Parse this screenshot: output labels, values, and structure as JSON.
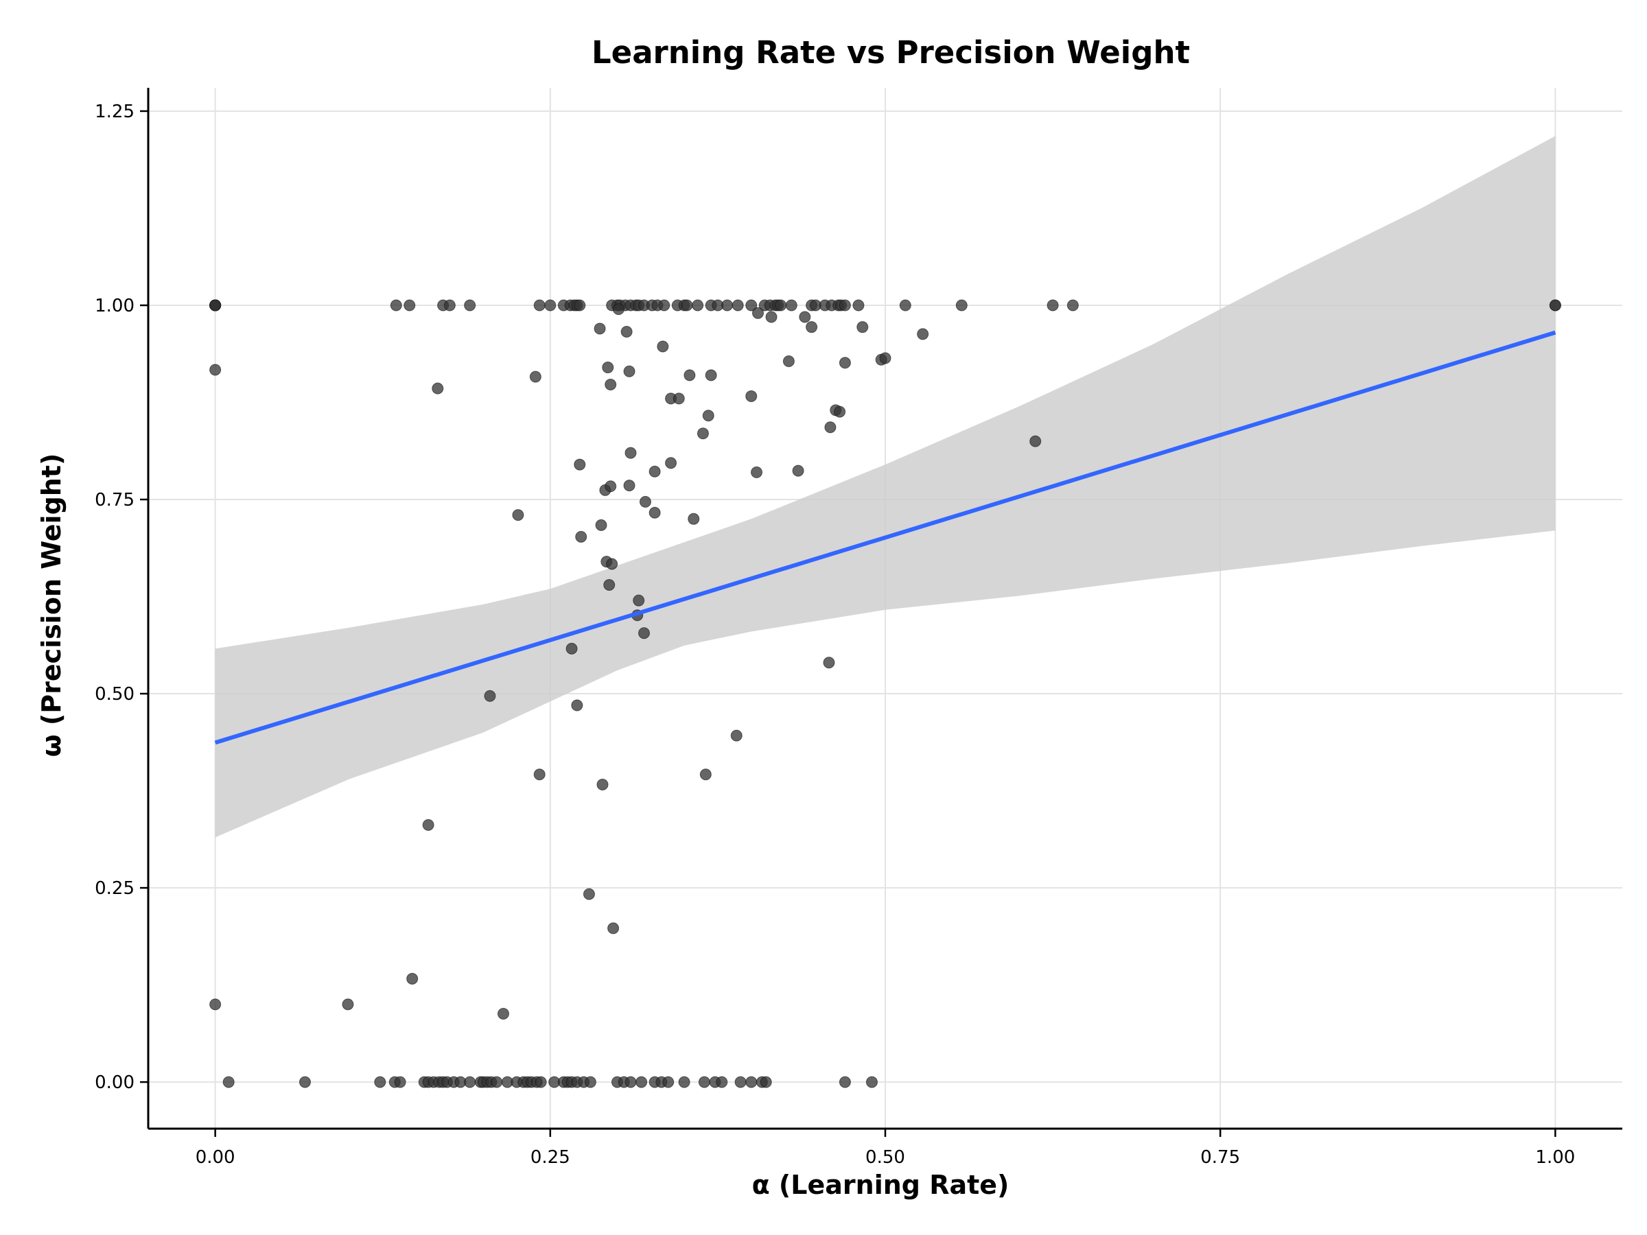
{
  "chart_data": {
    "type": "scatter",
    "title": "Learning Rate vs Precision Weight",
    "xlabel": "α (Learning Rate)",
    "ylabel": "ω (Precision Weight)",
    "xlim": [
      -0.05,
      1.05
    ],
    "ylim": [
      -0.06,
      1.28
    ],
    "x_ticks": [
      0.0,
      0.25,
      0.5,
      0.75,
      1.0
    ],
    "x_tick_labels": [
      "0.00",
      "0.25",
      "0.50",
      "0.75",
      "1.00"
    ],
    "y_ticks": [
      0.0,
      0.25,
      0.5,
      0.75,
      1.0,
      1.25
    ],
    "y_tick_labels": [
      "0.00",
      "0.25",
      "0.50",
      "0.75",
      "1.00",
      "1.25"
    ],
    "grid": true,
    "colors": {
      "points": "#333333",
      "trend_line": "#3366ff",
      "confidence_band": "#cccccc"
    },
    "trend_line": {
      "x": [
        0.0,
        1.0
      ],
      "y": [
        0.437,
        0.965
      ]
    },
    "confidence_band": {
      "x": [
        0.0,
        0.1,
        0.2,
        0.25,
        0.3,
        0.35,
        0.4,
        0.5,
        0.6,
        0.7,
        0.8,
        0.9,
        1.0
      ],
      "lower": [
        0.315,
        0.39,
        0.45,
        0.49,
        0.53,
        0.562,
        0.58,
        0.608,
        0.626,
        0.648,
        0.668,
        0.69,
        0.71
      ],
      "upper": [
        0.558,
        0.585,
        0.615,
        0.635,
        0.665,
        0.695,
        0.725,
        0.795,
        0.87,
        0.95,
        1.04,
        1.125,
        1.218
      ]
    },
    "points": {
      "x": [
        0.0,
        0.0,
        0.0,
        0.0,
        0.0,
        0.0,
        0.135,
        0.145,
        0.17,
        0.175,
        0.19,
        0.242,
        0.25,
        0.26,
        0.265,
        0.268,
        0.27,
        0.272,
        0.296,
        0.3,
        0.302,
        0.306,
        0.31,
        0.314,
        0.316,
        0.32,
        0.326,
        0.33,
        0.335,
        0.345,
        0.35,
        0.352,
        0.36,
        0.37,
        0.375,
        0.382,
        0.39,
        0.4,
        0.41,
        0.414,
        0.418,
        0.42,
        0.422,
        0.43,
        0.445,
        0.448,
        0.455,
        0.46,
        0.465,
        0.467,
        0.47,
        0.48,
        0.515,
        0.557,
        0.625,
        0.64,
        1.0,
        1.0,
        0.301,
        0.405,
        0.415,
        0.44,
        0.445,
        0.483,
        0.307,
        0.287,
        0.528,
        0.334,
        0.0,
        0.497,
        0.5,
        0.428,
        0.47,
        0.293,
        0.309,
        0.239,
        0.354,
        0.295,
        0.37,
        0.166,
        0.34,
        0.346,
        0.4,
        0.463,
        0.466,
        0.368,
        0.364,
        0.459,
        0.612,
        0.31,
        0.272,
        0.34,
        0.328,
        0.404,
        0.435,
        0.291,
        0.309,
        0.295,
        0.321,
        0.226,
        0.328,
        0.357,
        0.288,
        0.273,
        0.292,
        0.296,
        0.294,
        0.316,
        0.315,
        0.32,
        0.266,
        0.458,
        0.205,
        0.27,
        0.389,
        0.242,
        0.366,
        0.289,
        0.159,
        0.279,
        0.297,
        0.147,
        0.0,
        0.099,
        0.215,
        0.01,
        0.067,
        0.123,
        0.134,
        0.138,
        0.156,
        0.159,
        0.163,
        0.167,
        0.17,
        0.173,
        0.178,
        0.183,
        0.19,
        0.198,
        0.2,
        0.203,
        0.206,
        0.21,
        0.218,
        0.225,
        0.23,
        0.233,
        0.236,
        0.24,
        0.243,
        0.253,
        0.26,
        0.263,
        0.266,
        0.27,
        0.275,
        0.28,
        0.3,
        0.305,
        0.31,
        0.318,
        0.328,
        0.333,
        0.338,
        0.35,
        0.365,
        0.373,
        0.378,
        0.392,
        0.4,
        0.408,
        0.411,
        0.47,
        0.49
      ],
      "y": [
        1.0,
        1.0,
        1.0,
        1.0,
        1.0,
        1.0,
        1.0,
        1.0,
        1.0,
        1.0,
        1.0,
        1.0,
        1.0,
        1.0,
        1.0,
        1.0,
        1.0,
        1.0,
        1.0,
        1.0,
        1.0,
        1.0,
        1.0,
        1.0,
        1.0,
        1.0,
        1.0,
        1.0,
        1.0,
        1.0,
        1.0,
        1.0,
        1.0,
        1.0,
        1.0,
        1.0,
        1.0,
        1.0,
        1.0,
        1.0,
        1.0,
        1.0,
        1.0,
        1.0,
        1.0,
        1.0,
        1.0,
        1.0,
        1.0,
        1.0,
        1.0,
        1.0,
        1.0,
        1.0,
        1.0,
        1.0,
        1.0,
        1.0,
        0.995,
        0.99,
        0.985,
        0.985,
        0.972,
        0.972,
        0.966,
        0.97,
        0.963,
        0.947,
        0.917,
        0.93,
        0.932,
        0.928,
        0.926,
        0.92,
        0.915,
        0.908,
        0.91,
        0.898,
        0.91,
        0.893,
        0.88,
        0.88,
        0.883,
        0.865,
        0.863,
        0.858,
        0.835,
        0.843,
        0.825,
        0.81,
        0.795,
        0.797,
        0.786,
        0.785,
        0.787,
        0.762,
        0.768,
        0.767,
        0.747,
        0.73,
        0.733,
        0.725,
        0.717,
        0.702,
        0.67,
        0.667,
        0.64,
        0.62,
        0.601,
        0.578,
        0.558,
        0.54,
        0.497,
        0.485,
        0.446,
        0.396,
        0.396,
        0.383,
        0.331,
        0.242,
        0.198,
        0.133,
        0.1,
        0.1,
        0.088,
        0.0,
        0.0,
        0.0,
        0.0,
        0.0,
        0.0,
        0.0,
        0.0,
        0.0,
        0.0,
        0.0,
        0.0,
        0.0,
        0.0,
        0.0,
        0.0,
        0.0,
        0.0,
        0.0,
        0.0,
        0.0,
        0.0,
        0.0,
        0.0,
        0.0,
        0.0,
        0.0,
        0.0,
        0.0,
        0.0,
        0.0,
        0.0,
        0.0,
        0.0,
        0.0,
        0.0,
        0.0,
        0.0,
        0.0,
        0.0,
        0.0,
        0.0,
        0.0,
        0.0,
        0.0,
        0.0,
        0.0,
        0.0,
        0.0,
        0.0
      ]
    },
    "legend": "none"
  }
}
